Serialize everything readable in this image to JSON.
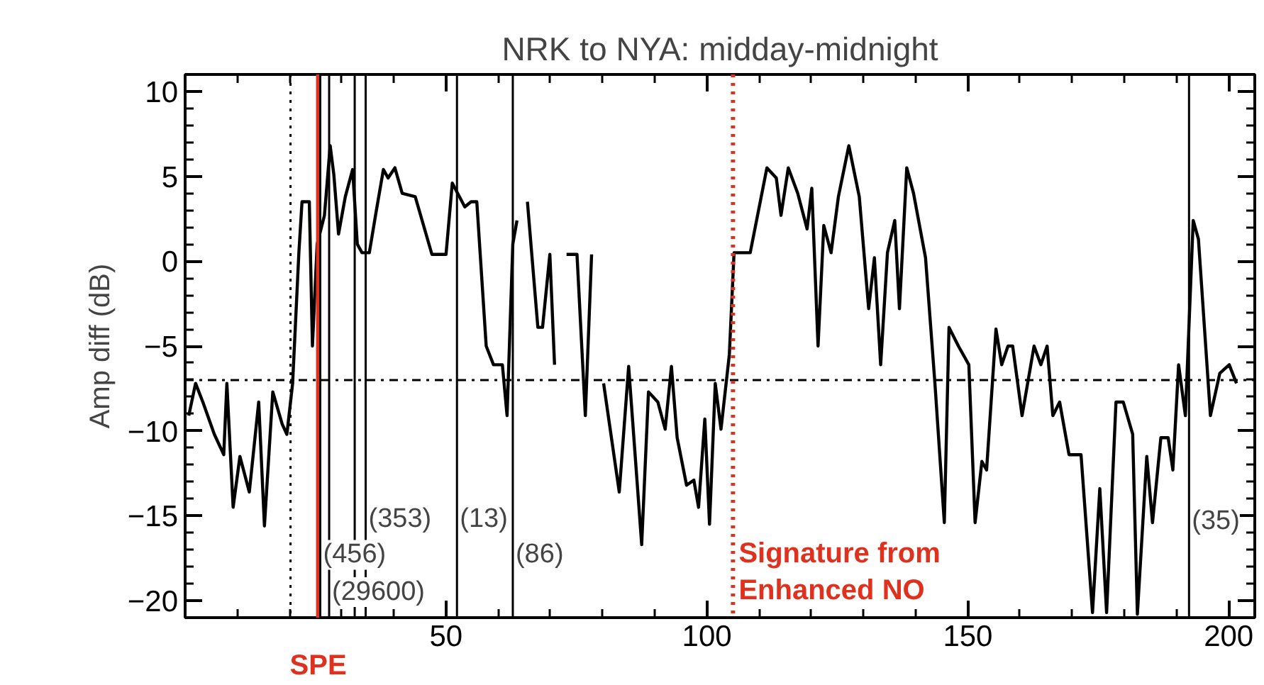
{
  "chart_data": {
    "type": "line",
    "title": "NRK to NYA: midday-midnight",
    "ylabel": "Amp diff (dB)",
    "x": [
      0.7,
      2.0,
      3.4,
      5.6,
      7.4,
      8.0,
      9.2,
      10.5,
      12.3,
      14.1,
      15.2,
      16.8,
      18.6,
      19.5,
      20.6,
      21.8,
      22.4,
      23.8,
      24.4,
      25.3,
      26.7,
      27.8,
      28.5,
      29.4,
      30.7,
      32.1,
      33.0,
      33.9,
      35.3,
      36.6,
      38.0,
      38.9,
      40.2,
      41.6,
      44.1,
      47.3,
      50.0,
      51.2,
      53.6,
      54.8,
      55.9,
      57.7,
      59.1,
      60.8,
      61.7,
      62.8,
      63.6,
      64.6,
      65.6,
      67.6,
      68.5,
      69.9,
      70.8,
      72.0,
      73.1,
      75.1,
      76.7,
      77.9,
      79.0,
      80.2,
      83.2,
      85.0,
      87.5,
      88.8,
      90.6,
      92.0,
      93.2,
      94.3,
      96.1,
      97.5,
      98.4,
      99.6,
      100.5,
      101.6,
      102.7,
      104.3,
      105.2,
      108.3,
      111.5,
      113.3,
      114.2,
      115.6,
      117.4,
      119.2,
      120.1,
      121.3,
      122.4,
      123.8,
      125.2,
      127.2,
      129.2,
      131.0,
      132.1,
      133.3,
      134.6,
      136.0,
      136.9,
      138.3,
      139.6,
      141.9,
      143.7,
      145.5,
      146.4,
      148.2,
      150.2,
      151.4,
      152.7,
      153.6,
      155.4,
      156.5,
      157.7,
      158.6,
      160.4,
      162.7,
      164.0,
      165.2,
      166.3,
      167.6,
      169.4,
      171.7,
      173.9,
      175.3,
      176.6,
      178.4,
      179.8,
      181.6,
      182.5,
      184.3,
      185.4,
      187.0,
      188.4,
      189.3,
      190.4,
      191.7,
      193.2,
      194.2,
      196.5,
      198.3,
      200.1,
      201.5
    ],
    "values": [
      -9.1,
      -7.2,
      -8.3,
      -10.2,
      -11.4,
      -7.2,
      -14.5,
      -11.5,
      -13.6,
      -8.3,
      -15.6,
      -7.7,
      -9.6,
      -10.2,
      -7.2,
      0.5,
      3.5,
      3.5,
      -5.0,
      1.0,
      2.7,
      6.8,
      5.1,
      1.6,
      3.8,
      5.4,
      1.0,
      0.5,
      0.5,
      2.9,
      5.4,
      4.9,
      5.5,
      4.0,
      3.8,
      0.4,
      0.4,
      4.6,
      3.2,
      3.5,
      3.5,
      -5.0,
      -6.1,
      -6.1,
      -9.1,
      1.0,
      2.4,
      null,
      3.5,
      -3.9,
      -3.9,
      0.4,
      -6.1,
      null,
      0.4,
      0.4,
      -9.1,
      0.4,
      null,
      -7.2,
      -13.6,
      -6.2,
      -16.7,
      -7.7,
      -8.3,
      -9.9,
      -6.2,
      -10.4,
      -13.2,
      -12.9,
      -14.5,
      -9.3,
      -15.5,
      -7.2,
      -9.9,
      -5.5,
      0.5,
      0.5,
      5.5,
      4.9,
      2.7,
      5.5,
      4.0,
      1.9,
      4.3,
      -5.0,
      2.1,
      0.5,
      3.8,
      6.8,
      3.8,
      -2.8,
      0.2,
      -6.1,
      0.5,
      2.4,
      -2.8,
      5.5,
      4.0,
      0.2,
      -7.2,
      -15.4,
      -3.9,
      -5.0,
      -6.1,
      -15.4,
      -11.8,
      -12.3,
      -4.0,
      -6.1,
      -5.0,
      -5.0,
      -9.1,
      -5.0,
      -6.1,
      -5.0,
      -9.1,
      -8.3,
      -11.4,
      -11.4,
      -20.7,
      -13.4,
      -20.7,
      -8.3,
      -8.3,
      -10.2,
      -20.8,
      -11.5,
      -15.4,
      -10.4,
      -10.4,
      -12.3,
      -6.1,
      -9.1,
      2.4,
      1.3,
      -9.1,
      -6.6,
      -6.1,
      -7.2
    ],
    "color": "#000000",
    "xlim": [
      0,
      205
    ],
    "xticks": [
      50,
      100,
      150,
      200
    ],
    "ylim": [
      -21,
      11
    ],
    "yticks": [
      -20,
      -15,
      -10,
      -5,
      0,
      5,
      10
    ],
    "grid": false,
    "marker": "none",
    "line_style": "solid",
    "ref_lines": [
      {
        "axis": "y",
        "value": -7,
        "line_style": "dashdot",
        "color": "#000000"
      },
      {
        "axis": "x",
        "value": 20.2,
        "line_style": "dotted",
        "color": "#000000"
      },
      {
        "axis": "x",
        "value": 25.5,
        "line_style": "solid",
        "color": "#e0301e",
        "label": "SPE"
      },
      {
        "axis": "x",
        "value": 25.9,
        "line_style": "solid",
        "color": "#000000"
      },
      {
        "axis": "x",
        "value": 27.6,
        "line_style": "solid",
        "color": "#000000"
      },
      {
        "axis": "x",
        "value": 32.5,
        "line_style": "solid",
        "color": "#000000"
      },
      {
        "axis": "x",
        "value": 34.6,
        "line_style": "solid",
        "color": "#000000"
      },
      {
        "axis": "x",
        "value": 52.1,
        "line_style": "solid",
        "color": "#000000"
      },
      {
        "axis": "x",
        "value": 62.8,
        "line_style": "solid",
        "color": "#000000"
      },
      {
        "axis": "x",
        "value": 105,
        "line_style": "dotted",
        "color": "#e0301e",
        "label": "Signature from\nEnhanced NO"
      },
      {
        "axis": "x",
        "value": 192.4,
        "line_style": "solid",
        "color": "#000000"
      }
    ],
    "annotations": [
      {
        "text": "(456)",
        "x": 25.9,
        "y": -17.3
      },
      {
        "text": "(29600)",
        "x": 27.6,
        "y": -19.5
      },
      {
        "text": "(353)",
        "x": 34.6,
        "y": -15.2
      },
      {
        "text": "(13)",
        "x": 52.1,
        "y": -15.2
      },
      {
        "text": "(86)",
        "x": 62.8,
        "y": -17.3
      },
      {
        "text": "(35)",
        "x": 192.4,
        "y": -15.3
      }
    ]
  }
}
